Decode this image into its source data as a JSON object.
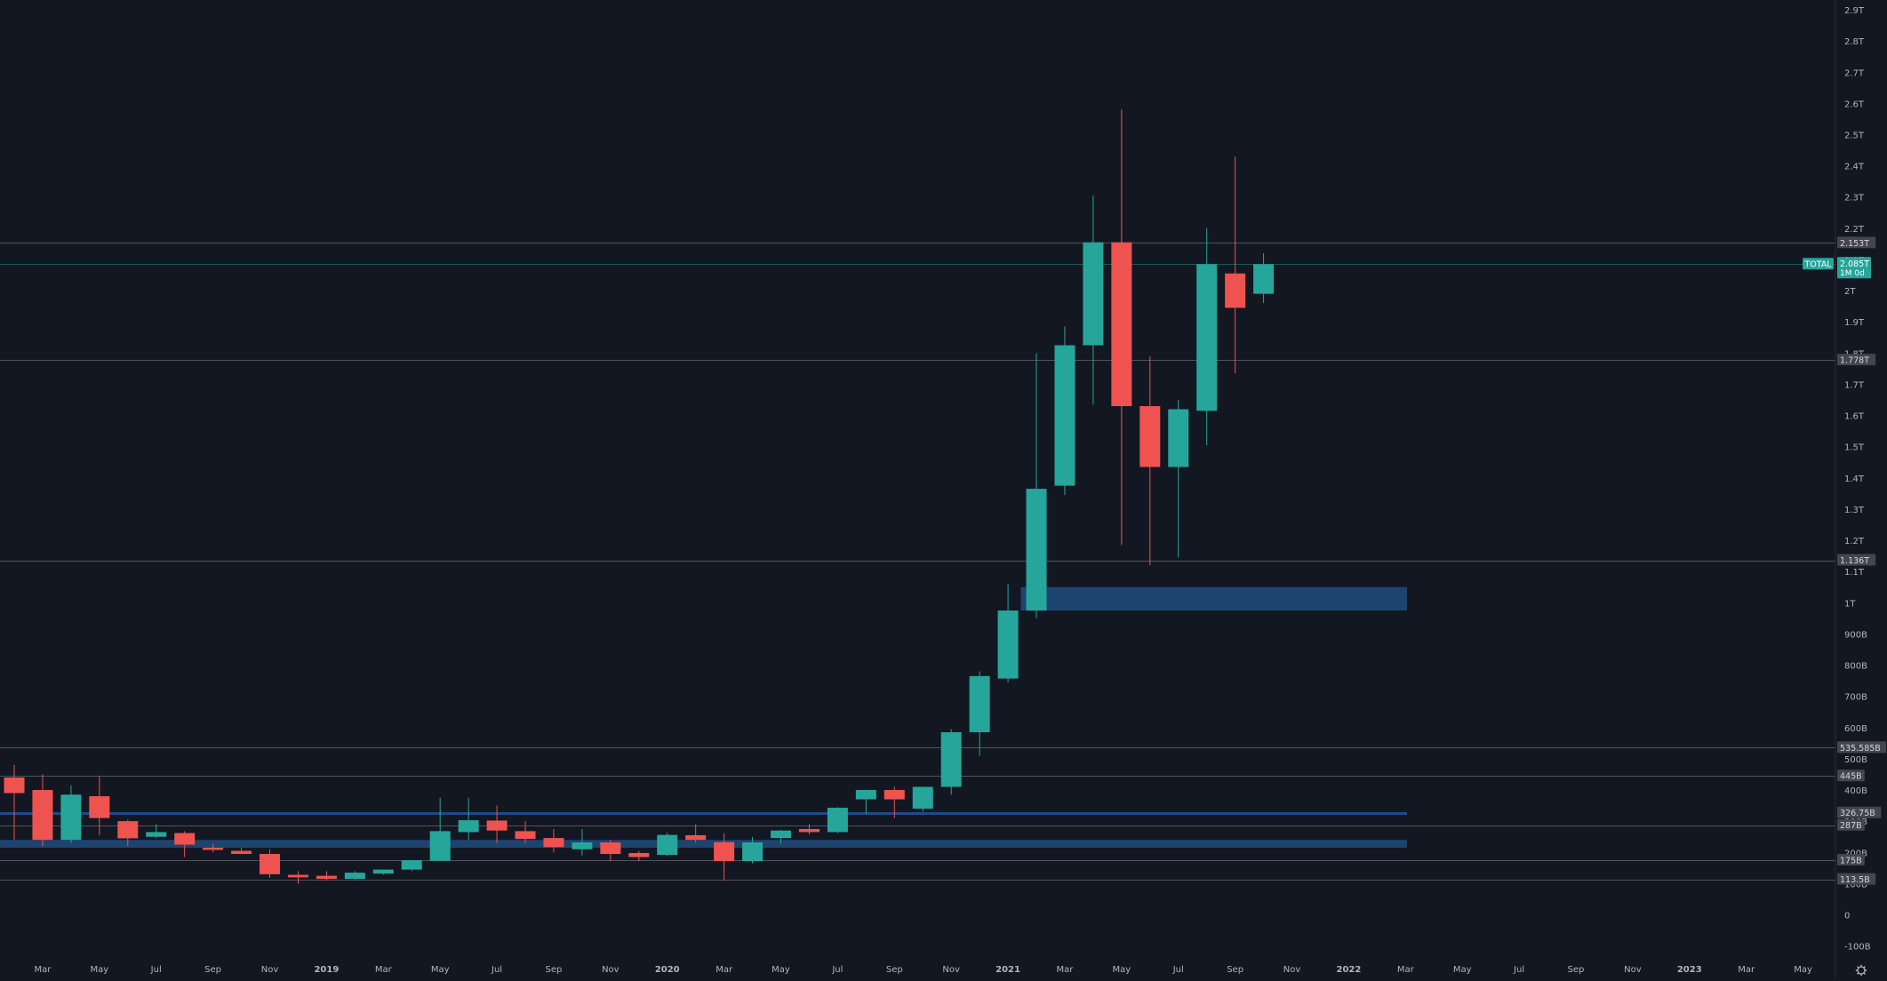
{
  "theme": {
    "background": "#131722",
    "up_color": "#26a69a",
    "down_color": "#ef5350",
    "axis_text": "#b2b5be",
    "axis_separator": "#2a2e39",
    "level_line": "#50535e",
    "zone_fill": "#1e4976",
    "zone_line": "#1e4a8a",
    "price_line": "#26a69a",
    "badge_bg": "#434651"
  },
  "chart_data": {
    "type": "candlestick",
    "interval": "1M",
    "series_label": "TOTAL",
    "current": {
      "value": "2.085T",
      "countdown": "1M 0d"
    },
    "y_axis": {
      "ticks": [
        "2.9T",
        "2.8T",
        "2.7T",
        "2.6T",
        "2.5T",
        "2.4T",
        "2.3T",
        "2.2T",
        "2.1T",
        "2T",
        "1.9T",
        "1.8T",
        "1.7T",
        "1.6T",
        "1.5T",
        "1.4T",
        "1.3T",
        "1.2T",
        "1.1T",
        "1T",
        "900B",
        "800B",
        "700B",
        "600B",
        "500B",
        "400B",
        "300B",
        "200B",
        "100B",
        "0",
        "-100B"
      ]
    },
    "x_axis": {
      "ticks": [
        "Mar",
        "May",
        "Jul",
        "Sep",
        "Nov",
        "2019",
        "Mar",
        "May",
        "Jul",
        "Sep",
        "Nov",
        "2020",
        "Mar",
        "May",
        "Jul",
        "Sep",
        "Nov",
        "2021",
        "Mar",
        "May",
        "Jul",
        "Sep",
        "Nov",
        "2022",
        "Mar",
        "May",
        "Jul",
        "Sep",
        "Nov",
        "2023",
        "Mar",
        "May"
      ]
    },
    "candles": [
      {
        "month": "2018-02",
        "o": 440,
        "h": 480,
        "l": 240,
        "c": 390
      },
      {
        "month": "2018-03",
        "o": 400,
        "h": 450,
        "l": 220,
        "c": 240
      },
      {
        "month": "2018-04",
        "o": 240,
        "h": 415,
        "l": 230,
        "c": 385
      },
      {
        "month": "2018-05",
        "o": 380,
        "h": 445,
        "l": 255,
        "c": 310
      },
      {
        "month": "2018-06",
        "o": 300,
        "h": 305,
        "l": 220,
        "c": 245
      },
      {
        "month": "2018-07",
        "o": 250,
        "h": 290,
        "l": 245,
        "c": 265
      },
      {
        "month": "2018-08",
        "o": 262,
        "h": 268,
        "l": 185,
        "c": 225
      },
      {
        "month": "2018-09",
        "o": 215,
        "h": 228,
        "l": 200,
        "c": 208
      },
      {
        "month": "2018-10",
        "o": 205,
        "h": 215,
        "l": 195,
        "c": 195
      },
      {
        "month": "2018-11",
        "o": 195,
        "h": 210,
        "l": 118,
        "c": 130
      },
      {
        "month": "2018-12",
        "o": 128,
        "h": 140,
        "l": 100,
        "c": 120
      },
      {
        "month": "2019-01",
        "o": 125,
        "h": 140,
        "l": 110,
        "c": 115
      },
      {
        "month": "2019-02",
        "o": 115,
        "h": 140,
        "l": 112,
        "c": 135
      },
      {
        "month": "2019-03",
        "o": 132,
        "h": 145,
        "l": 128,
        "c": 145
      },
      {
        "month": "2019-04",
        "o": 145,
        "h": 175,
        "l": 140,
        "c": 175
      },
      {
        "month": "2019-05",
        "o": 173,
        "h": 375,
        "l": 173,
        "c": 268
      },
      {
        "month": "2019-06",
        "o": 265,
        "h": 375,
        "l": 240,
        "c": 303
      },
      {
        "month": "2019-07",
        "o": 302,
        "h": 350,
        "l": 230,
        "c": 270
      },
      {
        "month": "2019-08",
        "o": 268,
        "h": 300,
        "l": 230,
        "c": 243
      },
      {
        "month": "2019-09",
        "o": 246,
        "h": 275,
        "l": 200,
        "c": 217
      },
      {
        "month": "2019-10",
        "o": 210,
        "h": 275,
        "l": 190,
        "c": 232
      },
      {
        "month": "2019-11",
        "o": 232,
        "h": 240,
        "l": 172,
        "c": 195
      },
      {
        "month": "2019-12",
        "o": 198,
        "h": 205,
        "l": 172,
        "c": 185
      },
      {
        "month": "2020-01",
        "o": 192,
        "h": 263,
        "l": 188,
        "c": 256
      },
      {
        "month": "2020-02",
        "o": 255,
        "h": 290,
        "l": 232,
        "c": 240
      },
      {
        "month": "2020-03",
        "o": 233,
        "h": 262,
        "l": 110,
        "c": 172
      },
      {
        "month": "2020-04",
        "o": 172,
        "h": 250,
        "l": 165,
        "c": 232
      },
      {
        "month": "2020-05",
        "o": 246,
        "h": 272,
        "l": 226,
        "c": 270
      },
      {
        "month": "2020-06",
        "o": 275,
        "h": 290,
        "l": 258,
        "c": 265
      },
      {
        "month": "2020-07",
        "o": 265,
        "h": 345,
        "l": 262,
        "c": 343
      },
      {
        "month": "2020-08",
        "o": 370,
        "h": 395,
        "l": 325,
        "c": 400
      },
      {
        "month": "2020-09",
        "o": 400,
        "h": 410,
        "l": 310,
        "c": 370
      },
      {
        "month": "2020-10",
        "o": 340,
        "h": 410,
        "l": 330,
        "c": 410
      },
      {
        "month": "2020-11",
        "o": 410,
        "h": 595,
        "l": 385,
        "c": 585
      },
      {
        "month": "2020-12",
        "o": 585,
        "h": 780,
        "l": 510,
        "c": 765
      },
      {
        "month": "2021-01",
        "o": 757,
        "h": 1060,
        "l": 745,
        "c": 975
      },
      {
        "month": "2021-02",
        "o": 975,
        "h": 1800,
        "l": 950,
        "c": 1365
      },
      {
        "month": "2021-03",
        "o": 1375,
        "h": 1885,
        "l": 1345,
        "c": 1825
      },
      {
        "month": "2021-04",
        "o": 1825,
        "h": 2305,
        "l": 1635,
        "c": 2155
      },
      {
        "month": "2021-05",
        "o": 2155,
        "h": 2580,
        "l": 1185,
        "c": 1630
      },
      {
        "month": "2021-06",
        "o": 1630,
        "h": 1790,
        "l": 1120,
        "c": 1435
      },
      {
        "month": "2021-07",
        "o": 1435,
        "h": 1650,
        "l": 1145,
        "c": 1620
      },
      {
        "month": "2021-08",
        "o": 1615,
        "h": 2200,
        "l": 1505,
        "c": 2085
      },
      {
        "month": "2021-09",
        "o": 2055,
        "h": 2430,
        "l": 1735,
        "c": 1945
      },
      {
        "month": "2021-10",
        "o": 1990,
        "h": 2120,
        "l": 1960,
        "c": 2085
      }
    ],
    "levels": [
      {
        "value": 2153,
        "label": "2.153T"
      },
      {
        "value": 1778,
        "label": "1.778T"
      },
      {
        "value": 1136,
        "label": "1.136T"
      },
      {
        "value": 535.585,
        "label": "535.585B"
      },
      {
        "value": 445,
        "label": "445B"
      },
      {
        "value": 287,
        "label": "287B"
      },
      {
        "value": 175,
        "label": "175B"
      },
      {
        "value": 113.5,
        "label": "113.5B"
      }
    ],
    "blue_line": {
      "value": 326.75,
      "label": "326.75B"
    },
    "zones": [
      {
        "from": 975,
        "to": 1050
      },
      {
        "from": 215,
        "to": 240
      }
    ],
    "price_line_value": 2085,
    "y_unit": "billions USD",
    "grid": false,
    "legend": "none"
  }
}
